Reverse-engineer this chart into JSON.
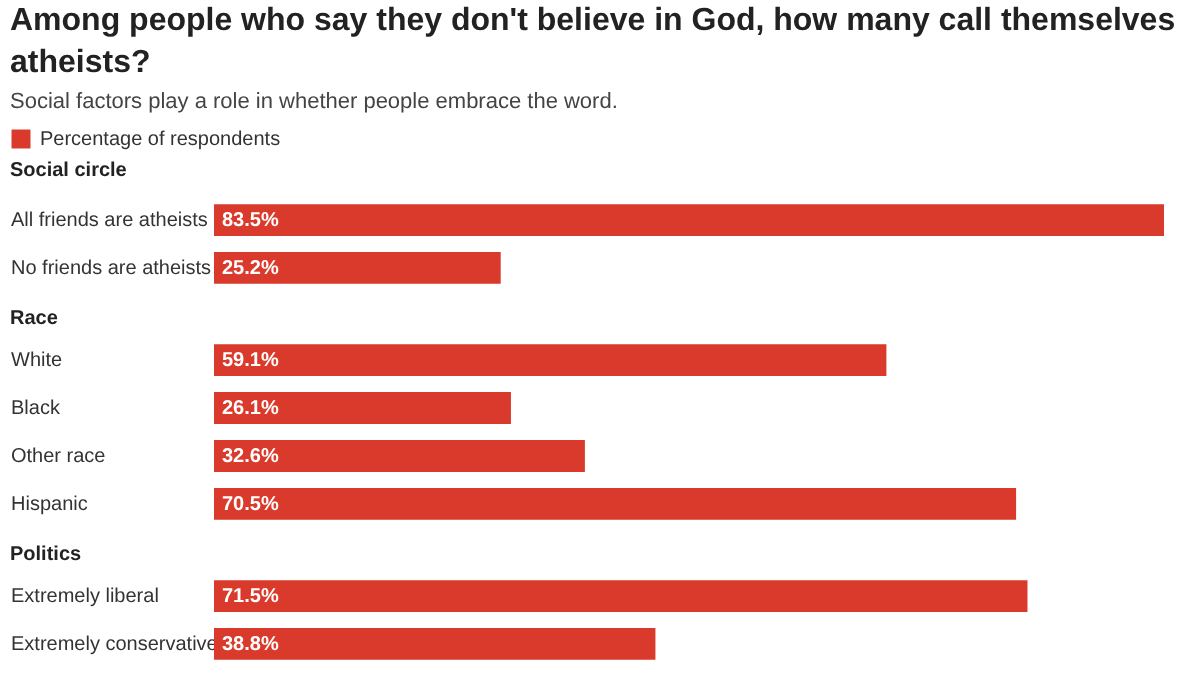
{
  "chart_data": [
    {
      "type": "other",
      "title": "Among people who say they don't believe in God, how many call themselves atheists?",
      "subtitle": "Social factors play a role in whether people embrace the word."
    },
    {
      "type": "bar",
      "orientation": "horizontal",
      "title": "Social circle",
      "categories": [
        "All friends are atheists",
        "No friends are atheists"
      ],
      "legend": "top left",
      "series": [
        {
          "name": "Percentage of respondents",
          "color": "#d93a2b",
          "values": [
            83.5,
            25.2
          ],
          "value_labels": [
            "83.5%",
            "25.2%"
          ]
        }
      ]
    },
    {
      "type": "bar",
      "orientation": "horizontal",
      "title": "Race",
      "categories": [
        "White",
        "Black",
        "Other race",
        "Hispanic"
      ],
      "series": [
        {
          "color": "#d93a2b",
          "values": [
            59.1,
            26.1,
            32.6,
            70.5
          ],
          "value_labels": [
            "59.1%",
            "26.1%",
            "32.6%",
            "70.5%"
          ]
        }
      ]
    },
    {
      "type": "bar",
      "orientation": "horizontal",
      "title": "Politics",
      "categories": [
        "Extremely liberal",
        "Extremely conservative"
      ],
      "series": [
        {
          "color": "#d93a2b",
          "values": [
            71.5,
            38.8
          ],
          "value_labels": [
            "71.5%",
            "38.8%"
          ]
        }
      ]
    }
  ]
}
